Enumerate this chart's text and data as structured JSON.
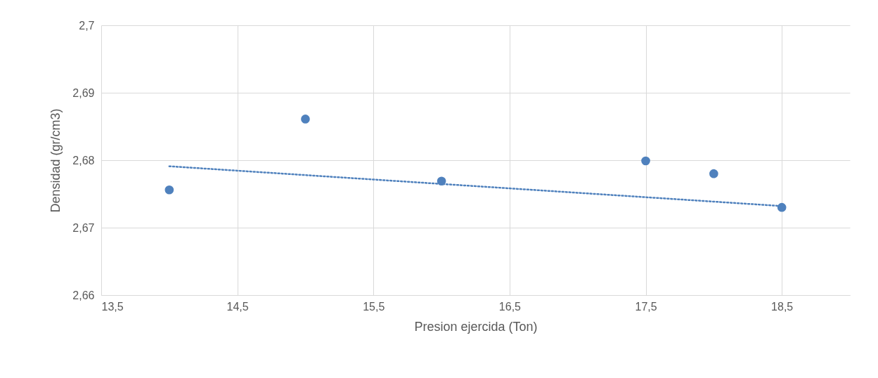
{
  "chart_data": {
    "type": "scatter",
    "xlabel": "Presion ejercida (Ton)",
    "ylabel": "Densidad (gr/cm3)",
    "xlim": [
      13.5,
      19
    ],
    "ylim": [
      2.66,
      2.7
    ],
    "xticks": [
      {
        "value": 13.5,
        "label": "13,5"
      },
      {
        "value": 14.5,
        "label": "14,5"
      },
      {
        "value": 15.5,
        "label": "15,5"
      },
      {
        "value": 16.5,
        "label": "16,5"
      },
      {
        "value": 17.5,
        "label": "17,5"
      },
      {
        "value": 18.5,
        "label": "18,5"
      }
    ],
    "yticks": [
      {
        "value": 2.66,
        "label": "2,66"
      },
      {
        "value": 2.67,
        "label": "2,67"
      },
      {
        "value": 2.68,
        "label": "2,68"
      },
      {
        "value": 2.69,
        "label": "2,69"
      },
      {
        "value": 2.7,
        "label": "2,7"
      }
    ],
    "grid": true,
    "series": [
      {
        "type": "scatter",
        "marker": "circle",
        "color": "#4f81bd",
        "x": [
          14,
          15,
          16,
          17.5,
          18,
          18.5
        ],
        "values": [
          2.6756,
          2.6861,
          2.6769,
          2.6799,
          2.678,
          2.673
        ]
      },
      {
        "type": "line",
        "marker": "none",
        "line_style": "dotted",
        "color": "#4f81bd",
        "x": [
          14,
          18.5
        ],
        "values": [
          2.6791,
          2.6732
        ]
      }
    ]
  }
}
